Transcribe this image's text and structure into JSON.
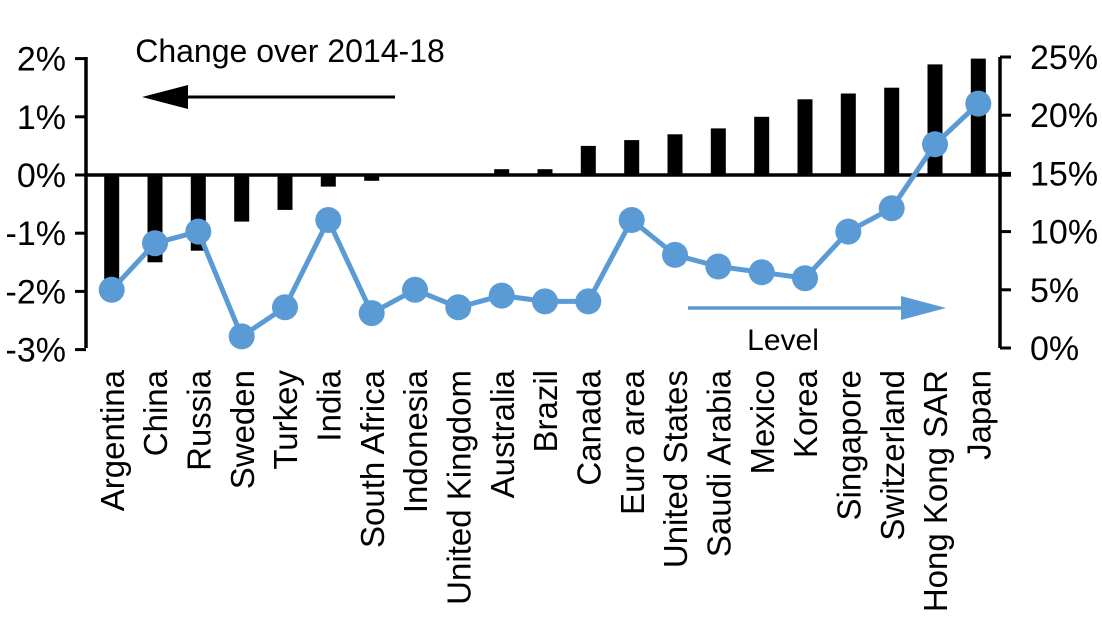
{
  "chart_data": {
    "type": "combo-bar-line",
    "title": "",
    "background": "#ffffff",
    "grid": false,
    "legend_position": "none",
    "categories": [
      "Argentina",
      "China",
      "Russia",
      "Sweden",
      "Turkey",
      "India",
      "South Africa",
      "Indonesia",
      "United Kingdom",
      "Australia",
      "Brazil",
      "Canada",
      "Euro area",
      "United States",
      "Saudi Arabia",
      "Mexico",
      "Korea",
      "Singapore",
      "Switzerland",
      "Hong Kong SAR",
      "Japan"
    ],
    "series": [
      {
        "name": "Change over 2014-18",
        "type": "bar",
        "axis": "left",
        "color": "#000000",
        "values": [
          -1.8,
          -1.5,
          -1.3,
          -0.8,
          -0.6,
          -0.2,
          -0.1,
          0,
          0,
          0.1,
          0.1,
          0.5,
          0.6,
          0.7,
          0.8,
          1.0,
          1.3,
          1.4,
          1.5,
          1.9,
          2.0
        ]
      },
      {
        "name": "Level",
        "type": "line",
        "axis": "right",
        "color": "#5B9BD5",
        "values": [
          5,
          9,
          10,
          1,
          3.5,
          11,
          3,
          5,
          3.5,
          4.5,
          4,
          4,
          11,
          8,
          7,
          6.5,
          6,
          10,
          12,
          17.5,
          21
        ]
      }
    ],
    "left_axis": {
      "ylim": [
        -3,
        2
      ],
      "tick_values": [
        2,
        1,
        0,
        -1,
        -2,
        -3
      ],
      "tick_labels": [
        "2%",
        "1%",
        "0%",
        "-1%",
        "-2%",
        "-3%"
      ]
    },
    "right_axis": {
      "ylim": [
        0,
        25
      ],
      "tick_values": [
        25,
        20,
        15,
        10,
        5,
        0
      ],
      "tick_labels": [
        "25%",
        "20%",
        "15%",
        "10%",
        "5%",
        "0%"
      ]
    },
    "annotations": [
      {
        "id": "bar-series-label",
        "text": "Change over 2014-18",
        "arrow": "left",
        "color": "#000000"
      },
      {
        "id": "line-series-label",
        "text": "Level",
        "arrow": "right",
        "color": "#5B9BD5"
      }
    ]
  }
}
